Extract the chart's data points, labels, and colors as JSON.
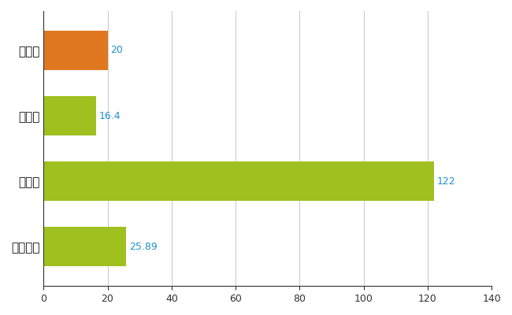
{
  "categories": [
    "鳥栖市",
    "県平均",
    "県最大",
    "全国平均"
  ],
  "values": [
    20,
    16.4,
    122,
    25.89
  ],
  "bar_colors": [
    "#e07820",
    "#a0c020",
    "#a0c020",
    "#a0c020"
  ],
  "value_labels": [
    "20",
    "16.4",
    "122",
    "25.89"
  ],
  "value_color": "#2090d0",
  "xlim": [
    0,
    140
  ],
  "xticks": [
    0,
    20,
    40,
    60,
    80,
    100,
    120,
    140
  ],
  "grid_color": "#cccccc",
  "background_color": "#ffffff",
  "bar_height": 0.6
}
